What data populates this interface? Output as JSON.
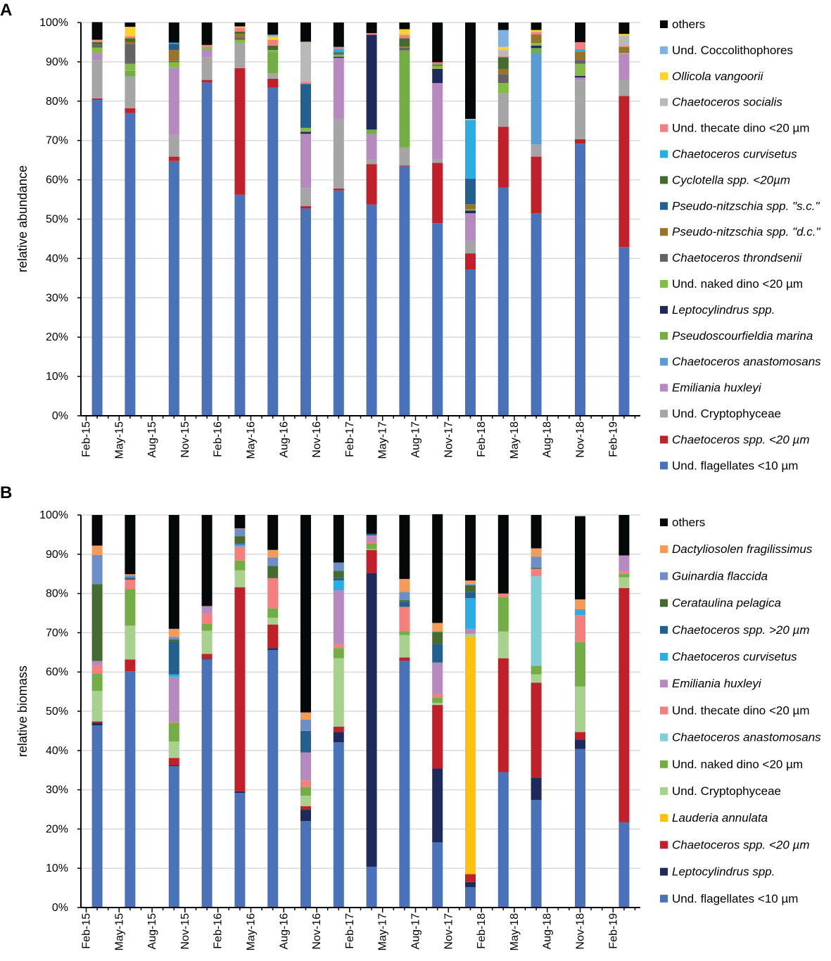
{
  "chart_data": [
    {
      "type": "bar",
      "stacked": true,
      "panel_label": "A",
      "title": "",
      "xlabel": "",
      "ylabel": "relative abundance",
      "ylim": [
        0,
        100
      ],
      "yticks": [
        "0%",
        "10%",
        "20%",
        "30%",
        "40%",
        "50%",
        "60%",
        "70%",
        "80%",
        "90%",
        "100%"
      ],
      "xticks": [
        "Feb-15",
        "May-15",
        "Aug-15",
        "Nov-15",
        "Feb-16",
        "May-16",
        "Aug-16",
        "Nov-16",
        "Feb-17",
        "May-17",
        "Aug-17",
        "Nov-17",
        "Feb-18",
        "May-18",
        "Aug-18",
        "Nov-18",
        "Feb-19"
      ],
      "x_unit": "months since Feb-15",
      "x": [
        1,
        4,
        8,
        11,
        14,
        17,
        20,
        23,
        26,
        29,
        32,
        35,
        38,
        41,
        45,
        49
      ],
      "grid": true,
      "legend_position": "right",
      "series": [
        {
          "name": "Und. flagellates <10 µm",
          "italic": false,
          "color": "#4a72b8",
          "values": [
            80.3,
            77.0,
            64.8,
            84.8,
            56.2,
            83.4,
            52.7,
            57.3,
            53.7,
            63.4,
            49.0,
            37.2,
            58.0,
            51.5,
            69.2,
            42.9
          ]
        },
        {
          "name": "Chaetoceros spp. <20 µm",
          "italic": true,
          "color": "#c0202a",
          "values": [
            0.4,
            1.2,
            1.1,
            0.6,
            32.2,
            2.3,
            0.6,
            0.5,
            10.3,
            0.2,
            15.3,
            4.1,
            15.5,
            14.4,
            1.1,
            38.4
          ]
        },
        {
          "name": "Und. Cryptophyceae",
          "italic": false,
          "color": "#a5a5a5",
          "values": [
            9.8,
            8.1,
            5.5,
            5.8,
            6.4,
            1.4,
            4.6,
            17.7,
            1.2,
            4.6,
            1.0,
            3.1,
            8.5,
            3.1,
            15.0,
            4.1
          ]
        },
        {
          "name": "Emiliania huxleyi",
          "italic": true,
          "color": "#b78abf",
          "values": [
            1.7,
            0,
            17.0,
            2.0,
            0,
            0,
            13.8,
            15.5,
            6.4,
            0,
            19.3,
            7.1,
            0,
            0,
            0.7,
            6.6
          ]
        },
        {
          "name": "Chaetoceros anastomosans",
          "italic": true,
          "color": "#5b9bd5",
          "values": [
            0,
            0,
            0,
            0,
            0,
            0,
            0,
            0,
            0,
            0,
            0,
            0,
            0,
            23.3,
            0,
            0
          ]
        },
        {
          "name": "Pseudoscourfieldia marina",
          "italic": true,
          "color": "#72ad46",
          "values": [
            0,
            1.4,
            0,
            0,
            0,
            5.3,
            0,
            0,
            1.2,
            24.7,
            0,
            0,
            0,
            1.2,
            0,
            0
          ]
        },
        {
          "name": "Leptocylindrus spp.",
          "italic": true,
          "color": "#1f2a5c",
          "values": [
            0,
            0,
            0,
            0,
            0,
            0,
            0.5,
            0.3,
            24.1,
            0,
            3.6,
            0.7,
            0,
            0.6,
            0.4,
            0
          ]
        },
        {
          "name": "Und. naked dino <20 µm",
          "italic": false,
          "color": "#84bb46",
          "values": [
            1.4,
            1.8,
            1.5,
            0.6,
            0.8,
            0.6,
            1.0,
            0.5,
            0,
            0,
            0.7,
            0.3,
            2.6,
            0.7,
            3.1,
            0.3
          ]
        },
        {
          "name": "Chaetoceros throndsenii",
          "italic": true,
          "color": "#636363",
          "values": [
            0.8,
            5.1,
            0.3,
            0,
            0.6,
            0,
            0,
            0.3,
            0,
            0.7,
            0,
            0,
            2.3,
            0,
            1.0,
            0
          ]
        },
        {
          "name": "Pseudo-nitzschia spp. \"d.c.\"",
          "italic": true,
          "color": "#98742b",
          "values": [
            0,
            0.4,
            2.8,
            0,
            0.9,
            0,
            0,
            0,
            0,
            0.3,
            0.5,
            1.3,
            1.3,
            2.2,
            2.1,
            1.5
          ]
        },
        {
          "name": "Pseudo-nitzschia spp. \"s.c.\"",
          "italic": true,
          "color": "#24608f",
          "values": [
            0,
            0,
            1.6,
            0,
            0,
            0,
            11.2,
            0,
            0,
            0,
            0,
            6.5,
            0,
            0,
            0,
            0
          ]
        },
        {
          "name": "Cyclotella spp. <20µm",
          "italic": true,
          "color": "#466b30",
          "values": [
            0.6,
            1.0,
            0,
            0,
            0.6,
            1.1,
            0,
            0.3,
            0,
            2.1,
            0,
            0,
            3.0,
            0,
            0,
            0
          ]
        },
        {
          "name": "Chaetoceros curvisetus",
          "italic": true,
          "color": "#29aee4",
          "values": [
            0,
            0,
            0.3,
            0,
            0,
            0,
            0,
            0.9,
            0,
            0,
            0.2,
            14.9,
            0,
            0,
            0.6,
            0
          ]
        },
        {
          "name": "Und. thecate dino <20 µm",
          "italic": false,
          "color": "#f37f7f",
          "values": [
            0.5,
            0.5,
            0,
            0.5,
            1.0,
            1.5,
            0.5,
            0.5,
            0.4,
            0.9,
            0.3,
            0,
            0.2,
            0.6,
            1.8,
            0.2
          ]
        },
        {
          "name": "Chaetoceros socialis",
          "italic": true,
          "color": "#b9b9b9",
          "values": [
            0,
            0,
            0,
            0,
            0,
            0,
            10.1,
            0,
            0,
            0,
            0,
            0.3,
            1.6,
            0,
            0,
            2.7
          ]
        },
        {
          "name": "Ollicola vangoorii",
          "italic": true,
          "color": "#ffd12e",
          "values": [
            0.1,
            2.4,
            0,
            0,
            0.3,
            0.8,
            0.1,
            0,
            0,
            1.4,
            0,
            0,
            0.8,
            0.5,
            0,
            0.4
          ]
        },
        {
          "name": "Und. Coccolithophores",
          "italic": false,
          "color": "#7fb2e0",
          "values": [
            0,
            0,
            0,
            0,
            0,
            0.5,
            0,
            0,
            0,
            0,
            0,
            0,
            4.3,
            0,
            0,
            0
          ]
        },
        {
          "name": "others",
          "italic": false,
          "color": "#040808",
          "values": [
            4.5,
            1.1,
            5.1,
            5.7,
            1.0,
            3.1,
            4.9,
            6.2,
            2.7,
            1.7,
            10.1,
            24.5,
            1.9,
            1.9,
            5.0,
            2.9
          ]
        }
      ]
    },
    {
      "type": "bar",
      "stacked": true,
      "panel_label": "B",
      "title": "",
      "xlabel": "",
      "ylabel": "relative biomass",
      "ylim": [
        0,
        100
      ],
      "yticks": [
        "0%",
        "10%",
        "20%",
        "30%",
        "40%",
        "50%",
        "60%",
        "70%",
        "80%",
        "90%",
        "100%"
      ],
      "xticks": [
        "Feb-15",
        "May-15",
        "Aug-15",
        "Nov-15",
        "Feb-16",
        "May-16",
        "Aug-16",
        "Nov-16",
        "Feb-17",
        "May-17",
        "Aug-17",
        "Nov-17",
        "Feb-18",
        "May-18",
        "Aug-18",
        "Nov-18",
        "Feb-19"
      ],
      "x_unit": "months since Feb-15",
      "x": [
        1,
        4,
        8,
        11,
        14,
        17,
        20,
        23,
        26,
        29,
        32,
        35,
        38,
        41,
        45,
        49
      ],
      "grid": true,
      "legend_position": "right",
      "series": [
        {
          "name": "Und. flagellates <10 µm",
          "italic": false,
          "color": "#4a72b8",
          "values": [
            46.4,
            60.2,
            36.0,
            63.2,
            29.2,
            65.6,
            22.0,
            42.1,
            10.4,
            62.9,
            16.6,
            5.2,
            34.5,
            27.4,
            40.4,
            21.7
          ]
        },
        {
          "name": "Leptocylindrus spp.",
          "italic": true,
          "color": "#1f2a5c",
          "values": [
            0.7,
            0,
            0.2,
            0.2,
            0.4,
            0.5,
            2.9,
            2.6,
            74.8,
            0,
            18.8,
            1.3,
            0,
            5.7,
            2.4,
            0
          ]
        },
        {
          "name": "Chaetoceros spp. <20 µm",
          "italic": true,
          "color": "#c0202a",
          "values": [
            0.3,
            3.0,
            1.9,
            1.2,
            52.0,
            6.0,
            0.9,
            1.4,
            5.9,
            0.8,
            16.2,
            2.0,
            29.0,
            24.2,
            1.9,
            59.7
          ]
        },
        {
          "name": "Lauderia annulata",
          "italic": true,
          "color": "#ffc00f",
          "values": [
            0,
            0,
            0,
            0,
            0,
            0,
            0,
            0,
            0,
            0,
            0,
            60.4,
            0,
            0,
            0,
            0
          ]
        },
        {
          "name": "Und. Cryptophyceae",
          "italic": false,
          "color": "#a9d18e",
          "values": [
            7.8,
            8.6,
            4.2,
            5.9,
            4.3,
            1.7,
            2.7,
            17.4,
            0.2,
            5.7,
            0.5,
            0.8,
            6.8,
            2.1,
            11.6,
            2.7
          ]
        },
        {
          "name": "Und. naked dino <20 µm",
          "italic": false,
          "color": "#72ad46",
          "values": [
            4.4,
            9.3,
            4.8,
            1.8,
            2.5,
            2.4,
            2.2,
            2.6,
            1.5,
            1.0,
            1.3,
            0,
            8.8,
            2.2,
            11.3,
            0.9
          ]
        },
        {
          "name": "Chaetoceros anastomosans",
          "italic": true,
          "color": "#7ecfd6",
          "values": [
            0,
            0,
            0,
            0,
            0,
            0,
            0,
            0,
            0,
            0,
            0,
            0,
            0,
            22.8,
            0,
            0
          ]
        },
        {
          "name": "Und. thecate dino <20 µm",
          "italic": false,
          "color": "#f37f7f",
          "values": [
            2.1,
            2.4,
            0.2,
            2.6,
            3.6,
            7.7,
            1.7,
            1.0,
            0.3,
            6.2,
            1.0,
            0,
            0.9,
            1.9,
            6.9,
            0.6
          ]
        },
        {
          "name": "Emiliania huxleyi",
          "italic": true,
          "color": "#b78abf",
          "values": [
            1.1,
            0,
            11.5,
            1.9,
            0,
            0,
            7.1,
            13.7,
            1.7,
            0,
            8.0,
            1.3,
            0,
            0,
            0,
            4.1
          ]
        },
        {
          "name": "Chaetoceros curvisetus",
          "italic": true,
          "color": "#29aee4",
          "values": [
            0,
            0,
            0.6,
            0,
            0.5,
            0,
            0,
            2.5,
            0,
            0,
            0,
            7.8,
            0,
            0,
            1.2,
            0
          ]
        },
        {
          "name": "Chaetoceros spp. >20 µm",
          "italic": true,
          "color": "#24608f",
          "values": [
            0,
            0.3,
            8.5,
            0,
            0.3,
            0,
            5.3,
            0.6,
            0.4,
            1.3,
            4.7,
            1.6,
            0,
            0,
            0,
            0
          ]
        },
        {
          "name": "Cerataulina pelagica",
          "italic": true,
          "color": "#466b30",
          "values": [
            19.6,
            0.3,
            0.4,
            0,
            1.8,
            3.1,
            0.2,
            1.9,
            0,
            0.4,
            3.1,
            1.7,
            0,
            0.3,
            0,
            0
          ]
        },
        {
          "name": "Guinardia flaccida",
          "italic": true,
          "color": "#6d8fc9",
          "values": [
            7.4,
            0.5,
            0.6,
            0,
            1.9,
            2.2,
            2.9,
            2.1,
            0,
            2.1,
            0.2,
            0.3,
            0,
            2.8,
            0.3,
            0
          ]
        },
        {
          "name": "Dactyliosolen fragilissimus",
          "italic": true,
          "color": "#f49a5a",
          "values": [
            2.4,
            0.3,
            2.1,
            0,
            0.1,
            1.9,
            1.8,
            0,
            0,
            3.3,
            2.1,
            0.9,
            0,
            2.1,
            2.5,
            0
          ]
        },
        {
          "name": "others",
          "italic": false,
          "color": "#040808",
          "values": [
            7.8,
            15.1,
            29.0,
            23.2,
            3.4,
            8.9,
            50.3,
            12.1,
            4.8,
            16.3,
            27.7,
            16.7,
            20.0,
            8.5,
            21.2,
            10.3
          ]
        }
      ]
    }
  ]
}
